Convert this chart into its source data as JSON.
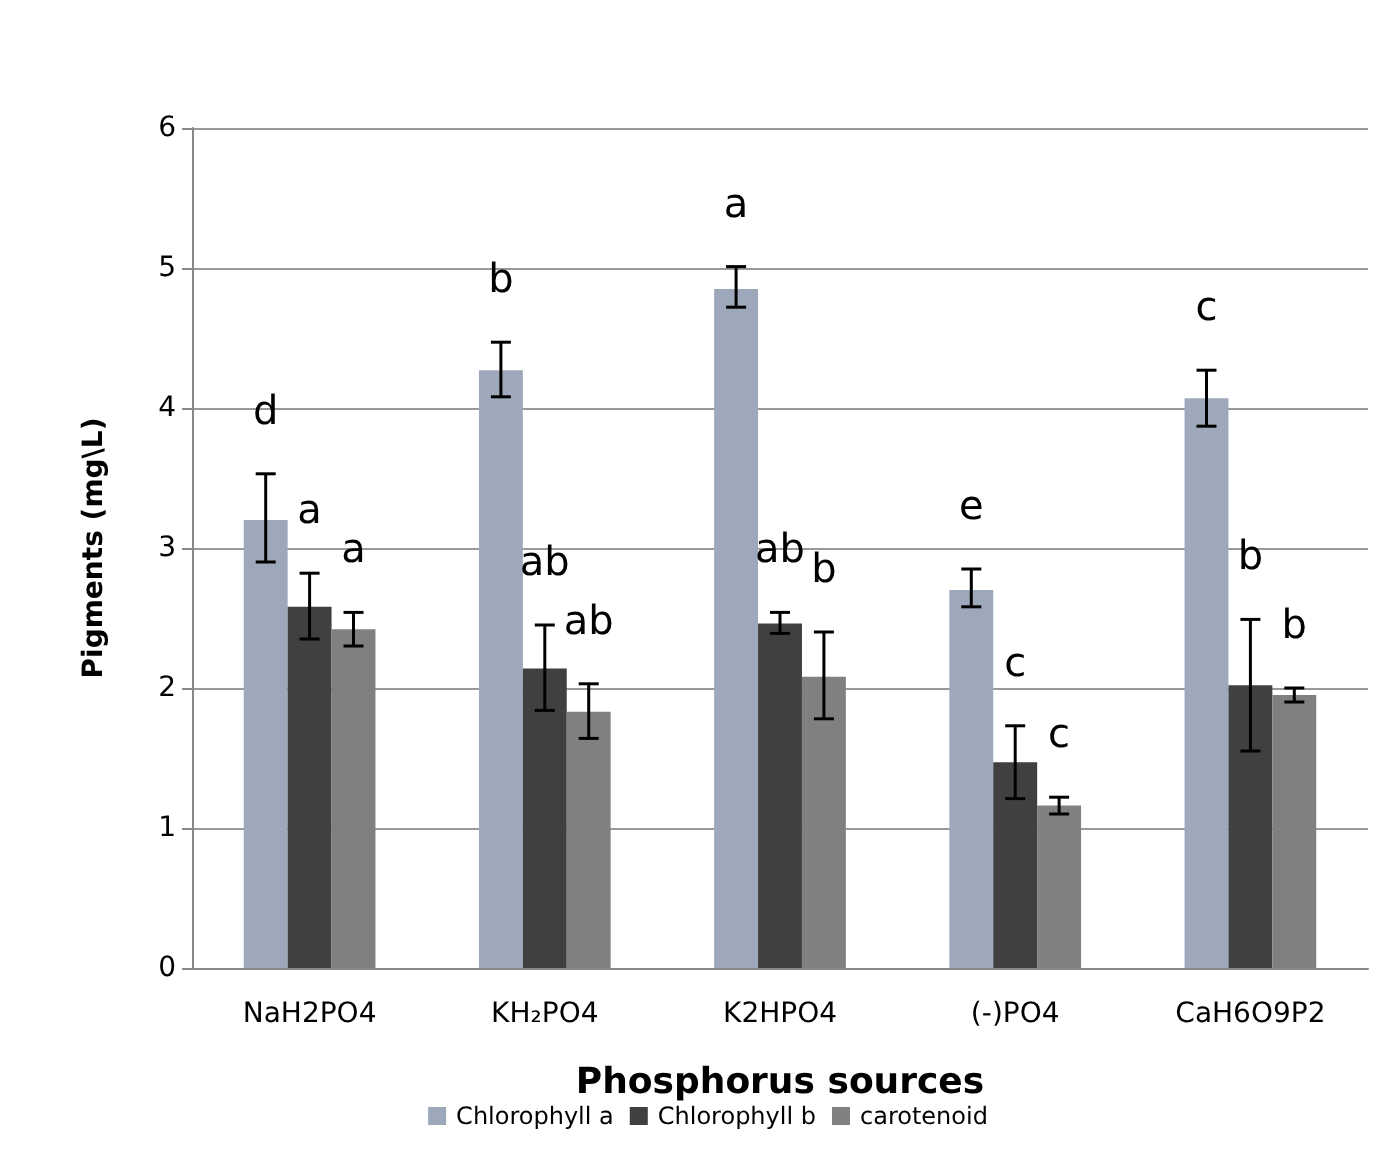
{
  "chart_data": {
    "type": "bar",
    "xlabel": "Phosphorus sources",
    "ylabel": "Pigments (mg\\L)",
    "categories": [
      "NaH2PO4",
      "KH₂PO4",
      "K2HPO4",
      "(-)PO4",
      "CaH6O9P2"
    ],
    "series": [
      {
        "name": "Chlorophyll a",
        "color": "#9ea8bb",
        "values": [
          3.2,
          4.27,
          4.85,
          2.7,
          4.07
        ],
        "errors": [
          [
            2.9,
            3.53
          ],
          [
            4.08,
            4.47
          ],
          [
            4.72,
            5.01
          ],
          [
            2.58,
            2.85
          ],
          [
            3.87,
            4.27
          ]
        ],
        "value_labels": [
          "d",
          "b",
          "a",
          "e",
          "c"
        ]
      },
      {
        "name": "Chlorophyll b",
        "color": "#404040",
        "values": [
          2.58,
          2.14,
          2.46,
          1.47,
          2.02
        ],
        "errors": [
          [
            2.35,
            2.82
          ],
          [
            1.84,
            2.45
          ],
          [
            2.39,
            2.54
          ],
          [
            1.21,
            1.73
          ],
          [
            1.55,
            2.49
          ]
        ],
        "value_labels": [
          "a",
          "ab",
          "ab",
          "c",
          "b"
        ]
      },
      {
        "name": "carotenoid",
        "color": "#808080",
        "values": [
          2.42,
          1.83,
          2.08,
          1.16,
          1.95
        ],
        "errors": [
          [
            2.3,
            2.54
          ],
          [
            1.64,
            2.03
          ],
          [
            1.78,
            2.4
          ],
          [
            1.1,
            1.22
          ],
          [
            1.9,
            2.0
          ]
        ],
        "value_labels": [
          "a",
          "ab",
          "b",
          "c",
          "b"
        ]
      }
    ],
    "ylim": [
      0,
      6
    ],
    "yticks": [
      0,
      1,
      2,
      3,
      4,
      5,
      6
    ],
    "grid": "y",
    "legend": "bottom"
  }
}
